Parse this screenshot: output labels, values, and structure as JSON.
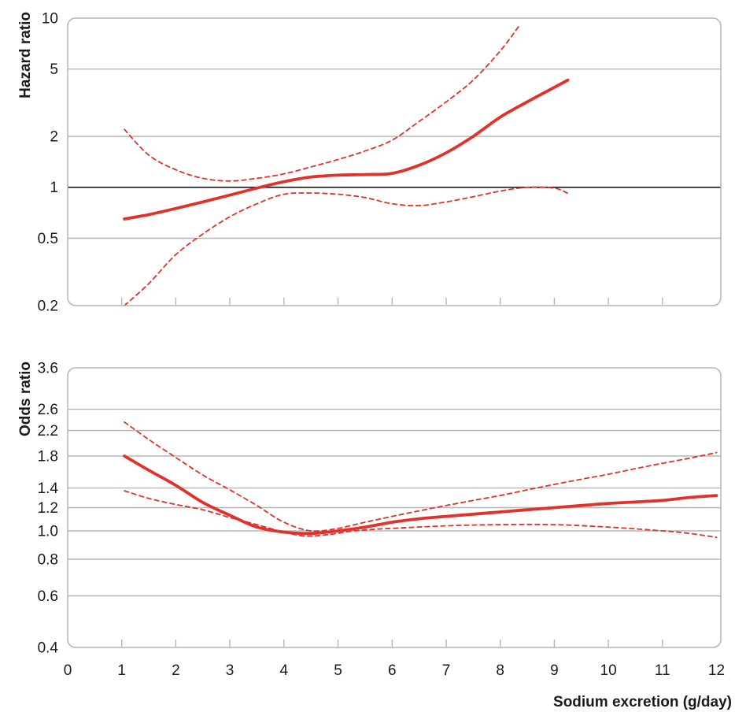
{
  "x_axis": {
    "label": "Sodium excretion (g/day)",
    "tick_labels": [
      "0",
      "1",
      "2",
      "3",
      "4",
      "5",
      "6",
      "7",
      "8",
      "9",
      "10",
      "11",
      "12"
    ],
    "tick_values": [
      0,
      1,
      2,
      3,
      4,
      5,
      6,
      7,
      8,
      9,
      10,
      11,
      12
    ],
    "range": [
      0,
      12.08
    ]
  },
  "colors": {
    "line_red": "#e0322a",
    "grid_gray": "#b5b5b5",
    "reference_black": "#1a1a1a",
    "text": "#1a1a1a",
    "background": "#ffffff"
  },
  "chart_data": [
    {
      "type": "line",
      "panel": "hazard-ratio",
      "ylabel": "Hazard ratio",
      "yscale": "log",
      "ylim": [
        0.2,
        10
      ],
      "ytick_values": [
        10,
        5,
        2,
        1,
        0.5,
        0.2
      ],
      "ytick_labels": [
        "10",
        "5",
        "2",
        "1",
        "0.5",
        "0.2"
      ],
      "reference_line_y": 1,
      "show_x_tick_labels": false,
      "xlabel": "",
      "grid": true,
      "legend": "none",
      "series": [
        {
          "name": "estimate",
          "line_style": "solid",
          "x": [
            1.05,
            1.5,
            2,
            2.5,
            3,
            3.5,
            4,
            4.5,
            5,
            5.5,
            6,
            6.5,
            7,
            7.5,
            8,
            8.5,
            9,
            9.25
          ],
          "y": [
            0.65,
            0.69,
            0.75,
            0.82,
            0.9,
            0.99,
            1.08,
            1.15,
            1.18,
            1.19,
            1.21,
            1.35,
            1.6,
            2.0,
            2.6,
            3.2,
            3.9,
            4.3
          ]
        },
        {
          "name": "ci-upper",
          "line_style": "dashed",
          "x": [
            1.05,
            1.5,
            2,
            2.5,
            3,
            3.5,
            4,
            4.5,
            5,
            5.5,
            6,
            6.5,
            7,
            7.5,
            8,
            8.35
          ],
          "y": [
            2.2,
            1.55,
            1.27,
            1.13,
            1.09,
            1.13,
            1.2,
            1.32,
            1.46,
            1.64,
            1.9,
            2.45,
            3.2,
            4.3,
            6.4,
            9.0
          ]
        },
        {
          "name": "ci-lower",
          "line_style": "dashed",
          "x": [
            1.05,
            1.5,
            2,
            2.5,
            3,
            3.5,
            4,
            4.5,
            5,
            5.5,
            6,
            6.5,
            7,
            7.5,
            8,
            8.5,
            9,
            9.25
          ],
          "y": [
            0.2,
            0.27,
            0.4,
            0.53,
            0.67,
            0.8,
            0.91,
            0.925,
            0.91,
            0.87,
            0.8,
            0.78,
            0.82,
            0.88,
            0.95,
            1.0,
            0.99,
            0.92
          ]
        }
      ]
    },
    {
      "type": "line",
      "panel": "odds-ratio",
      "ylabel": "Odds ratio",
      "yscale": "log",
      "ylim": [
        0.4,
        3.6
      ],
      "ytick_values": [
        3.6,
        2.6,
        2.2,
        1.8,
        1.4,
        1.2,
        1.0,
        0.8,
        0.6,
        0.4
      ],
      "ytick_labels": [
        "3.6",
        "2.6",
        "2.2",
        "1.8",
        "1.4",
        "1.2",
        "1.0",
        "0.8",
        "0.6",
        "0.4"
      ],
      "reference_line_y": null,
      "show_x_tick_labels": true,
      "xlabel": "Sodium excretion (g/day)",
      "grid": true,
      "legend": "none",
      "series": [
        {
          "name": "estimate",
          "line_style": "solid",
          "x": [
            1.05,
            1.5,
            2,
            2.5,
            3,
            3.5,
            4,
            4.5,
            5,
            5.5,
            6,
            6.5,
            7,
            7.5,
            8,
            8.5,
            9,
            9.5,
            10,
            10.5,
            11,
            11.5,
            12
          ],
          "y": [
            1.8,
            1.61,
            1.43,
            1.25,
            1.13,
            1.03,
            0.99,
            0.98,
            1.0,
            1.03,
            1.07,
            1.1,
            1.12,
            1.14,
            1.16,
            1.18,
            1.2,
            1.22,
            1.24,
            1.255,
            1.27,
            1.3,
            1.32
          ]
        },
        {
          "name": "ci-upper",
          "line_style": "dashed",
          "x": [
            1.05,
            1.5,
            2,
            2.5,
            3,
            3.5,
            4,
            4.5,
            5,
            5.5,
            6,
            6.5,
            7,
            7.5,
            8,
            8.5,
            9,
            9.5,
            10,
            10.5,
            11,
            11.5,
            12
          ],
          "y": [
            2.35,
            2.05,
            1.78,
            1.55,
            1.38,
            1.22,
            1.07,
            1.0,
            1.02,
            1.07,
            1.12,
            1.17,
            1.22,
            1.27,
            1.32,
            1.38,
            1.44,
            1.5,
            1.56,
            1.63,
            1.7,
            1.77,
            1.85
          ]
        },
        {
          "name": "ci-lower",
          "line_style": "dashed",
          "x": [
            1.05,
            1.5,
            2,
            2.5,
            3,
            3.5,
            4,
            4.4,
            4.8,
            5.2,
            5.6,
            6,
            7,
            8,
            9,
            10,
            11,
            11.5,
            12
          ],
          "y": [
            1.37,
            1.29,
            1.23,
            1.18,
            1.11,
            1.05,
            0.99,
            0.96,
            0.97,
            0.995,
            1.01,
            1.02,
            1.04,
            1.05,
            1.05,
            1.03,
            1.0,
            0.98,
            0.95
          ]
        }
      ]
    }
  ]
}
